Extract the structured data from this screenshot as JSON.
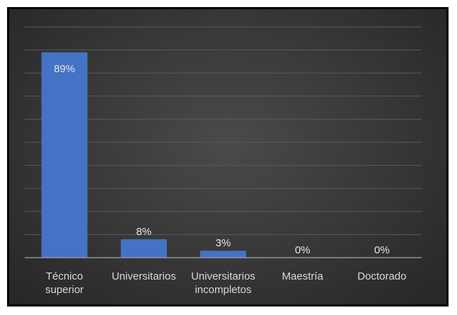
{
  "chart_data": {
    "type": "bar",
    "categories": [
      [
        "Técnico",
        "superior"
      ],
      [
        "Universitarios"
      ],
      [
        "Universitarios",
        "incompletos"
      ],
      [
        "Maestría"
      ],
      [
        "Doctorado"
      ]
    ],
    "values": [
      89,
      8,
      3,
      0,
      0
    ],
    "data_labels": [
      "89%",
      "8%",
      "3%",
      "0%",
      "0%"
    ],
    "title": "",
    "xlabel": "",
    "ylabel": "",
    "ylim": [
      0,
      100
    ],
    "grid": true,
    "legend": "none",
    "colors": {
      "bar": "#4472c4",
      "background": "#3a3a3a",
      "gridline": "#5a5a5a",
      "axis": "#a6a6a6",
      "text": "#d9d9d9"
    }
  }
}
